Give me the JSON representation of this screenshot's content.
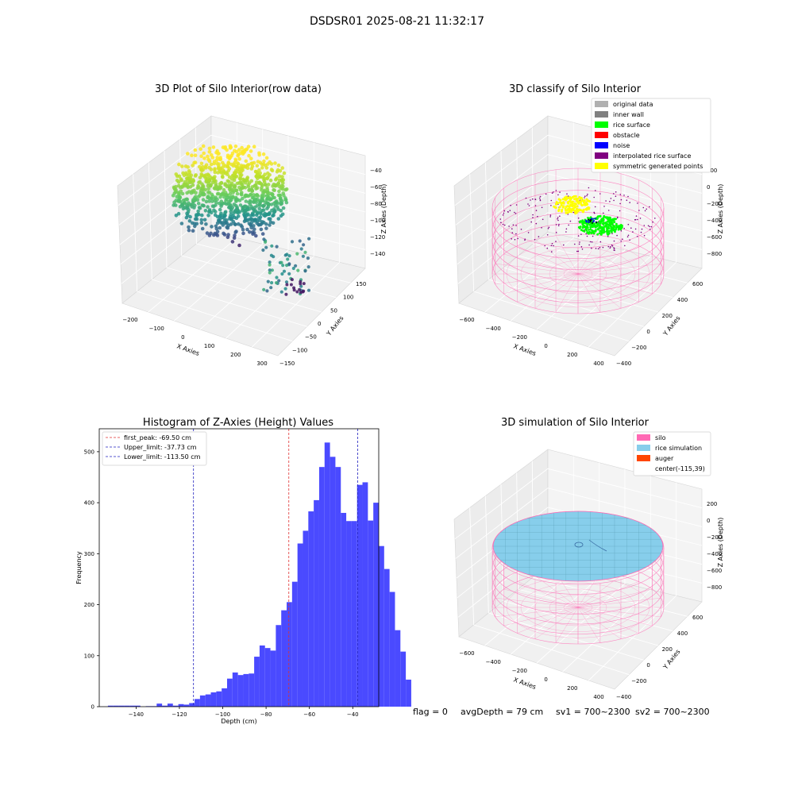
{
  "suptitle": "DSDSR01 2025-08-21 11:32:17",
  "footer": {
    "flag": "flag = 0",
    "avg_depth": "avgDepth = 79 cm",
    "sv1": "sv1 = 700~2300",
    "sv2": "sv2 = 700~2300"
  },
  "colors": {
    "hist_bar": "#4a4aff",
    "peak_line": "#e03030",
    "limit_line": "#2020c0",
    "silo_wire": "#ff69b4",
    "rice_sim": "#87ceeb",
    "auger": "#ff4500",
    "rice_surface": "#00ff00",
    "noise": "#0000ff",
    "obstacle": "#ff0000",
    "inner_wall": "#808080",
    "original": "#b0b0b0",
    "interpolated": "#800080",
    "symmetric": "#ffff00"
  },
  "chart_data": [
    {
      "type": "scatter",
      "title": "3D Plot of Silo Interior(row data)",
      "xlabel": "X Axies",
      "ylabel": "Y Axies",
      "zlabel": "Z Axies (Depth)",
      "x_ticks": [
        "−200",
        "−100",
        "0",
        "100",
        "200",
        "300"
      ],
      "y_ticks": [
        "150",
        "100",
        "50",
        "0",
        "−50",
        "−100",
        "−150"
      ],
      "z_ticks": [
        "−40",
        "−60",
        "−80",
        "−100",
        "−120",
        "−140"
      ],
      "xlim": [
        -220,
        310
      ],
      "ylim": [
        -150,
        160
      ],
      "zlim": [
        -150,
        -35
      ],
      "colormap": "viridis"
    },
    {
      "type": "scatter",
      "title": "3D classify of Silo Interior",
      "xlabel": "X Axies",
      "ylabel": "Y Axies",
      "zlabel": "Z Axies (Depth)",
      "x_ticks": [
        "−600",
        "−400",
        "−200",
        "0",
        "200",
        "400"
      ],
      "y_ticks": [
        "600",
        "400",
        "200",
        "0",
        "−200",
        "−400"
      ],
      "z_ticks": [
        "200",
        "0",
        "−200",
        "−400",
        "−600",
        "−800"
      ],
      "legend_position": "top-right",
      "legend": [
        {
          "label": "original data",
          "color": "#b0b0b0"
        },
        {
          "label": "inner wall",
          "color": "#808080"
        },
        {
          "label": "rice surface",
          "color": "#00ff00"
        },
        {
          "label": "obstacle",
          "color": "#ff0000"
        },
        {
          "label": "noise",
          "color": "#0000ff"
        },
        {
          "label": "interpolated rice surface",
          "color": "#800080"
        },
        {
          "label": "symmetric generated points",
          "color": "#ffff00"
        }
      ]
    },
    {
      "type": "bar",
      "title": "Histogram of Z-Axies (Height) Values",
      "xlabel": "Depth (cm)",
      "ylabel": "Frequency",
      "xlim": [
        -157,
        -28
      ],
      "ylim": [
        0,
        545
      ],
      "x_ticks": [
        -140,
        -120,
        -100,
        -80,
        -60,
        -40
      ],
      "y_ticks": [
        0,
        100,
        200,
        300,
        400,
        500
      ],
      "bin_start": -153,
      "bin_width": 2.5,
      "values": [
        2,
        2,
        2,
        2,
        2,
        2,
        0,
        1,
        1,
        6,
        2,
        6,
        2,
        5,
        4,
        7,
        15,
        22,
        24,
        28,
        30,
        36,
        55,
        67,
        62,
        64,
        65,
        98,
        120,
        115,
        110,
        160,
        189,
        205,
        245,
        320,
        345,
        383,
        405,
        470,
        518,
        490,
        470,
        380,
        364,
        364,
        435,
        440,
        365,
        400,
        315,
        270,
        225,
        150,
        108,
        53
      ],
      "lines": [
        {
          "label": "first_peak: -69.50 cm",
          "x": -69.5,
          "color": "#e03030"
        },
        {
          "label": "Upper_limit: -37.73 cm",
          "x": -37.73,
          "color": "#2020c0"
        },
        {
          "label": "Lower_limit: -113.50 cm",
          "x": -113.5,
          "color": "#2020c0"
        }
      ],
      "legend_position": "top-left"
    },
    {
      "type": "area",
      "title": "3D simulation of Silo Interior",
      "xlabel": "X Axies",
      "ylabel": "Y Axies",
      "zlabel": "Z Axies (Depth)",
      "x_ticks": [
        "−600",
        "−400",
        "−200",
        "0",
        "200",
        "400"
      ],
      "y_ticks": [
        "600",
        "400",
        "200",
        "0",
        "−200",
        "−400"
      ],
      "z_ticks": [
        "200",
        "0",
        "−200",
        "−400",
        "−600",
        "−800"
      ],
      "legend_position": "top-right",
      "legend": [
        {
          "label": "silo",
          "color": "#ff69b4"
        },
        {
          "label": "rice simulation",
          "color": "#87ceeb"
        },
        {
          "label": "auger",
          "color": "#ff4500"
        },
        {
          "label": "center(-115,39)",
          "color": ""
        }
      ]
    }
  ]
}
